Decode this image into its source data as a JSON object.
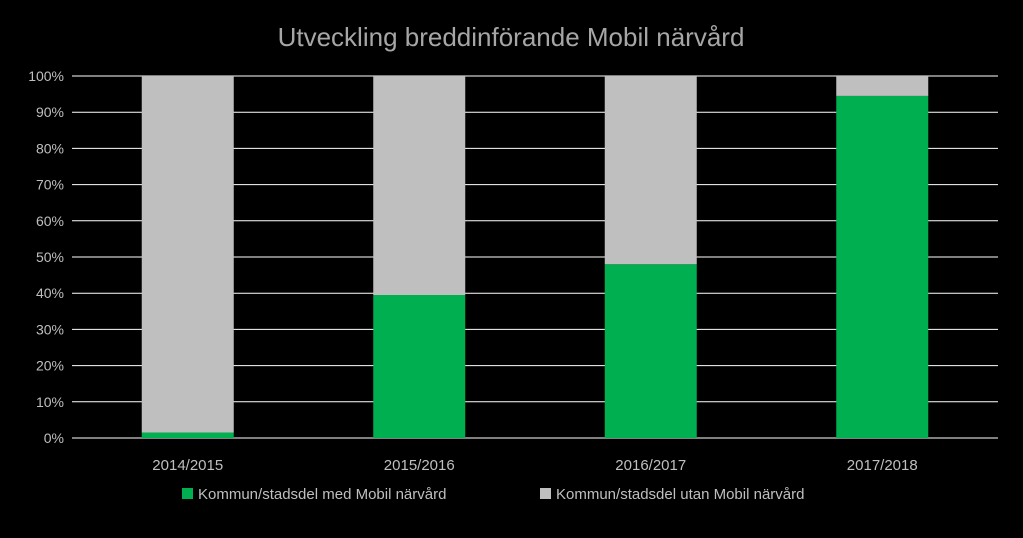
{
  "chart_data": {
    "type": "bar",
    "stacked": true,
    "percent": true,
    "title": "Utveckling breddinförande Mobil närvård",
    "categories": [
      "2014/2015",
      "2015/2016",
      "2016/2017",
      "2017/2018"
    ],
    "series": [
      {
        "name": "Kommun/stadsdel med Mobil närvård",
        "color": "#00b050",
        "values": [
          1.5,
          39.5,
          48,
          94.5
        ]
      },
      {
        "name": "Kommun/stadsdel utan Mobil närvård",
        "color": "#bfbfbf",
        "values": [
          98.5,
          60.5,
          52,
          5.5
        ]
      }
    ],
    "ylim": [
      0,
      100
    ],
    "yticks": [
      "0%",
      "10%",
      "20%",
      "30%",
      "40%",
      "50%",
      "60%",
      "70%",
      "80%",
      "90%",
      "100%"
    ],
    "grid": true,
    "legend": "bottom",
    "colors": {
      "background": "#000000",
      "grid": "#ffffff",
      "text": "#bfbfbf",
      "title": "#a6a6a6"
    }
  }
}
